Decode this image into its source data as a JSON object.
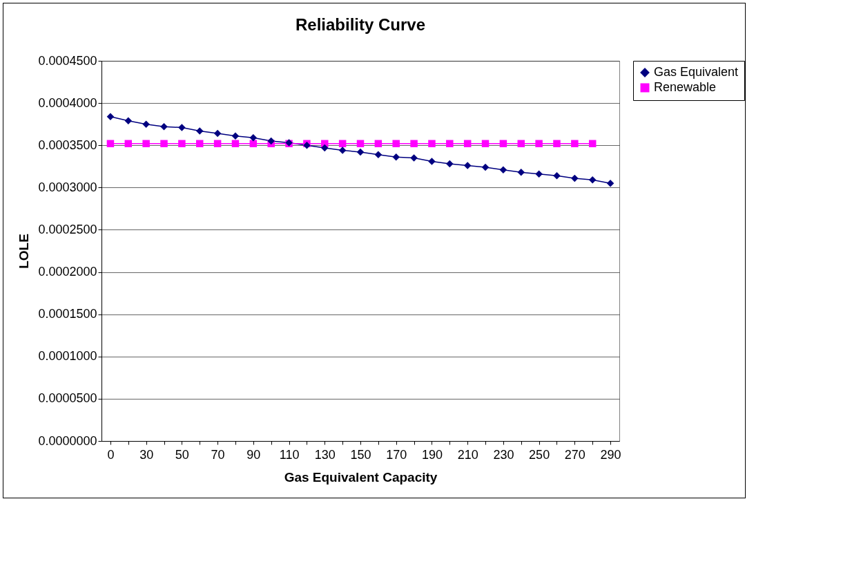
{
  "chart_data": {
    "type": "line",
    "title": "Reliability Curve",
    "xlabel": "Gas Equivalent Capacity",
    "ylabel": "LOLE",
    "categories": [
      "0",
      null,
      "30",
      null,
      "50",
      null,
      "70",
      null,
      "90",
      null,
      "110",
      null,
      "130",
      null,
      "150",
      null,
      "170",
      null,
      "190",
      null,
      "210",
      null,
      "230",
      null,
      "250",
      null,
      "270",
      null,
      "290"
    ],
    "series": [
      {
        "name": "Gas Equivalent",
        "color": "#000080",
        "marker": "diamond",
        "values": [
          0.000384,
          0.000379,
          0.000375,
          0.000372,
          0.000371,
          0.000367,
          0.000364,
          0.000361,
          0.000359,
          0.000355,
          0.000353,
          0.00035,
          0.000347,
          0.000344,
          0.000342,
          0.000339,
          0.000336,
          0.000335,
          0.000331,
          0.000328,
          0.000326,
          0.000324,
          0.000321,
          0.000318,
          0.000316,
          0.000314,
          0.000311,
          0.000309,
          0.000305
        ]
      },
      {
        "name": "Renewable",
        "color": "#ff00ff",
        "marker": "square",
        "values": [
          0.000352,
          0.000352,
          0.000352,
          0.000352,
          0.000352,
          0.000352,
          0.000352,
          0.000352,
          0.000352,
          0.000352,
          0.000352,
          0.000352,
          0.000352,
          0.000352,
          0.000352,
          0.000352,
          0.000352,
          0.000352,
          0.000352,
          0.000352,
          0.000352,
          0.000352,
          0.000352,
          0.000352,
          0.000352,
          0.000352,
          0.000352,
          0.000352,
          null
        ]
      }
    ],
    "ylim": [
      0,
      0.00045
    ],
    "yticks": [
      {
        "value": 0,
        "label": "0.0000000"
      },
      {
        "value": 5e-05,
        "label": "0.0000500"
      },
      {
        "value": 0.0001,
        "label": "0.0001000"
      },
      {
        "value": 0.00015,
        "label": "0.0001500"
      },
      {
        "value": 0.0002,
        "label": "0.0002000"
      },
      {
        "value": 0.00025,
        "label": "0.0002500"
      },
      {
        "value": 0.0003,
        "label": "0.0003000"
      },
      {
        "value": 0.00035,
        "label": "0.0003500"
      },
      {
        "value": 0.0004,
        "label": "0.0004000"
      },
      {
        "value": 0.00045,
        "label": "0.0004500"
      }
    ],
    "grid": "y",
    "legend": "right"
  }
}
